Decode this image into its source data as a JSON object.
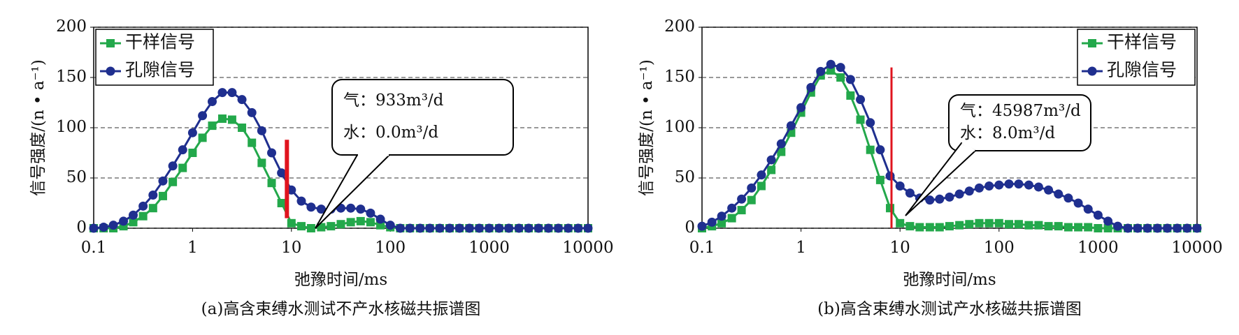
{
  "chart_data": [
    {
      "type": "line",
      "caption": "(a)高含束缚水测试不产水核磁共振谱图",
      "x_label": "弛豫时间/ms",
      "y_label": "信号强度/(n • a⁻¹)",
      "log_x": true,
      "grid": true,
      "legend": "upper left",
      "xlim": [
        0.1,
        10000
      ],
      "xticks": [
        0.1,
        1,
        10,
        100,
        1000,
        10000
      ],
      "ylim": [
        0,
        200
      ],
      "yticks": [
        0,
        50,
        100,
        150,
        200
      ],
      "x": [
        0.1,
        0.126,
        0.158,
        0.2,
        0.251,
        0.316,
        0.398,
        0.501,
        0.631,
        0.794,
        1,
        1.26,
        1.58,
        2,
        2.51,
        3.16,
        3.98,
        5.01,
        6.31,
        7.94,
        10,
        12.6,
        15.8,
        20,
        25.1,
        31.6,
        39.8,
        50.1,
        63.1,
        79.4,
        100,
        126,
        158,
        200,
        251,
        316,
        398,
        501,
        631,
        794,
        1000,
        1260,
        1580,
        2000,
        2510,
        3160,
        3980,
        5010,
        6310,
        7940,
        10000
      ],
      "series": [
        {
          "name": "干样信号",
          "color": "#23a84b",
          "marker": "square",
          "values": [
            0,
            0,
            0,
            2,
            6,
            12,
            20,
            32,
            46,
            60,
            75,
            90,
            102,
            109,
            108,
            100,
            85,
            65,
            45,
            25,
            5,
            2,
            0,
            1,
            2,
            4,
            6,
            7,
            6,
            3,
            1,
            0,
            0,
            0,
            0,
            0,
            0,
            0,
            0,
            0,
            0,
            0,
            0,
            0,
            0,
            0,
            0,
            0,
            0,
            0,
            0
          ]
        },
        {
          "name": "孔隙信号",
          "color": "#1f2f8f",
          "marker": "circle",
          "values": [
            0,
            1,
            3,
            7,
            13,
            22,
            33,
            47,
            62,
            78,
            95,
            112,
            126,
            135,
            135,
            128,
            115,
            97,
            75,
            55,
            38,
            27,
            21,
            19,
            19,
            20,
            20,
            19,
            15,
            9,
            3,
            0,
            0,
            0,
            0,
            0,
            0,
            0,
            0,
            0,
            0,
            0,
            0,
            0,
            0,
            0,
            0,
            0,
            0,
            0,
            0
          ]
        }
      ],
      "cutoff": {
        "x": 9,
        "y0": 10,
        "y1": 88,
        "color": "#e0141e"
      },
      "callout": [
        "气：933m³/d",
        "水：0.0m³/d"
      ]
    },
    {
      "type": "line",
      "caption": "(b)高含束缚水测试产水核磁共振谱图",
      "x_label": "弛豫时间/ms",
      "y_label": "信号强度/(n • a⁻¹)",
      "log_x": true,
      "grid": true,
      "legend": "upper right",
      "xlim": [
        0.1,
        10000
      ],
      "xticks": [
        0.1,
        1,
        10,
        100,
        1000,
        10000
      ],
      "ylim": [
        0,
        200
      ],
      "yticks": [
        0,
        50,
        100,
        150,
        200
      ],
      "x": [
        0.1,
        0.126,
        0.158,
        0.2,
        0.251,
        0.316,
        0.398,
        0.501,
        0.631,
        0.794,
        1,
        1.26,
        1.58,
        2,
        2.51,
        3.16,
        3.98,
        5.01,
        6.31,
        7.94,
        10,
        12.6,
        15.8,
        20,
        25.1,
        31.6,
        39.8,
        50.1,
        63.1,
        79.4,
        100,
        126,
        158,
        200,
        251,
        316,
        398,
        501,
        631,
        794,
        1000,
        1260,
        1580,
        2000,
        2510,
        3160,
        3980,
        5010,
        6310,
        7940,
        10000
      ],
      "series": [
        {
          "name": "干样信号",
          "color": "#23a84b",
          "marker": "square",
          "values": [
            0,
            2,
            5,
            10,
            18,
            28,
            42,
            58,
            76,
            95,
            115,
            135,
            152,
            157,
            150,
            132,
            108,
            78,
            48,
            20,
            5,
            2,
            1,
            1,
            1,
            2,
            3,
            4,
            5,
            5,
            5,
            4,
            4,
            3,
            3,
            2,
            2,
            1,
            1,
            1,
            0,
            0,
            0,
            0,
            0,
            0,
            0,
            0,
            0,
            0,
            0
          ]
        },
        {
          "name": "孔隙信号",
          "color": "#1f2f8f",
          "marker": "circle",
          "values": [
            2,
            6,
            12,
            20,
            29,
            40,
            53,
            68,
            84,
            102,
            120,
            140,
            156,
            163,
            160,
            148,
            128,
            105,
            78,
            52,
            42,
            35,
            30,
            28,
            29,
            31,
            34,
            37,
            40,
            42,
            43,
            44,
            44,
            43,
            41,
            38,
            34,
            30,
            25,
            19,
            13,
            7,
            2,
            0,
            0,
            0,
            0,
            0,
            0,
            0,
            0
          ]
        }
      ],
      "cutoff": {
        "x": 8.2,
        "y0": 0,
        "y1": 160,
        "color": "#e0141e"
      },
      "callout": [
        "气：45987m³/d",
        "水：8.0m³/d"
      ]
    }
  ]
}
